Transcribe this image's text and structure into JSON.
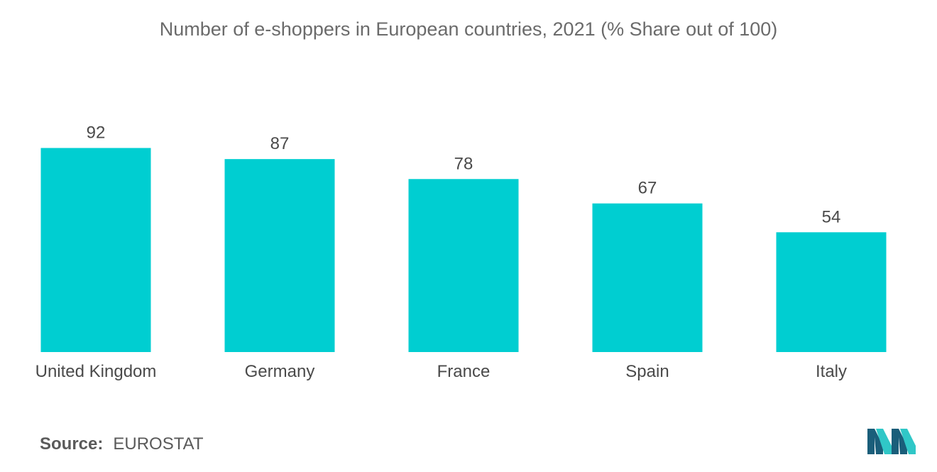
{
  "title": "Number of e-shoppers in European countries, 2021 (% Share out of 100)",
  "source": {
    "label": "Source:",
    "value": "EUROSTAT"
  },
  "colors": {
    "bar": "#00ced1",
    "logo_dark": "#1a5e7a",
    "logo_light": "#30c7c7"
  },
  "chart_data": {
    "type": "bar",
    "title": "Number of e-shoppers in European countries, 2021 (% Share out of 100)",
    "categories": [
      "United Kingdom",
      "Germany",
      "France",
      "Spain",
      "Italy"
    ],
    "values": [
      92,
      87,
      78,
      67,
      54
    ],
    "xlabel": "",
    "ylabel": "",
    "ylim": [
      0,
      100
    ],
    "grid": false,
    "legend": "none"
  }
}
